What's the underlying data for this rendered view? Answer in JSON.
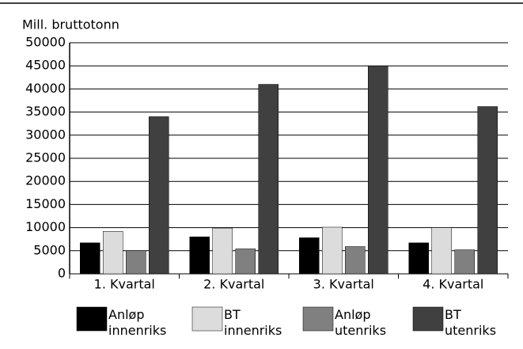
{
  "chart_data": {
    "type": "bar",
    "y_label": "Mill. bruttotonn",
    "categories": [
      "1. Kvartal",
      "2. Kvartal",
      "3. Kvartal",
      "4. Kvartal"
    ],
    "series": [
      {
        "name": "Anløp innenriks",
        "color": "#000000",
        "values": [
          6700,
          8000,
          7800,
          6700
        ]
      },
      {
        "name": "BT innenriks",
        "color": "#dcdcdc",
        "values": [
          9200,
          9900,
          10100,
          10000
        ]
      },
      {
        "name": "Anløp utenriks",
        "color": "#808080",
        "values": [
          5000,
          5400,
          5900,
          5200
        ]
      },
      {
        "name": "BT utenriks",
        "color": "#404040",
        "values": [
          34000,
          41000,
          45000,
          36200
        ]
      }
    ],
    "ylim": [
      0,
      50000
    ],
    "yticks": [
      0,
      5000,
      10000,
      15000,
      20000,
      25000,
      30000,
      35000,
      40000,
      45000,
      50000
    ],
    "grid": true
  }
}
